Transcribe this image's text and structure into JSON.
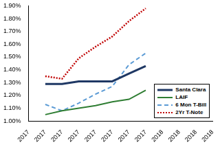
{
  "chart_data": {
    "type": "line",
    "categories": [
      "2017",
      "2017",
      "2017",
      "2017",
      "2017",
      "2017",
      "2017",
      "2017",
      "2018",
      "2018",
      "2018",
      "2018"
    ],
    "series": [
      {
        "name": "Santa Clara",
        "color": "#1f3864",
        "line_style": "solid",
        "values": [
          null,
          1.29,
          1.29,
          1.31,
          1.31,
          1.31,
          1.37,
          1.43,
          null,
          null,
          null,
          null
        ]
      },
      {
        "name": "LAIF",
        "color": "#2e7d32",
        "line_style": "solid",
        "values": [
          null,
          1.05,
          1.08,
          1.1,
          1.12,
          1.15,
          1.17,
          1.24,
          null,
          null,
          null,
          null
        ]
      },
      {
        "name": "6 Mon T-Bill",
        "color": "#5b9bd5",
        "line_style": "dashed",
        "values": [
          null,
          1.13,
          1.08,
          1.14,
          1.21,
          1.27,
          1.44,
          1.53,
          null,
          null,
          null,
          null
        ]
      },
      {
        "name": "2Yr T-Note",
        "color": "#c00000",
        "line_style": "dotted",
        "values": [
          null,
          1.35,
          1.33,
          1.49,
          1.58,
          1.66,
          1.78,
          1.88,
          null,
          null,
          null,
          null
        ]
      }
    ],
    "ylim": [
      1.0,
      1.9
    ],
    "yticks": [
      {
        "value": 1.0,
        "label": "1.00%"
      },
      {
        "value": 1.1,
        "label": "1.10%"
      },
      {
        "value": 1.2,
        "label": "1.20%"
      },
      {
        "value": 1.3,
        "label": "1.30%"
      },
      {
        "value": 1.4,
        "label": "1.40%"
      },
      {
        "value": 1.5,
        "label": "1.50%"
      },
      {
        "value": 1.6,
        "label": "1.60%"
      },
      {
        "value": 1.7,
        "label": "1.70%"
      },
      {
        "value": 1.8,
        "label": "1.80%"
      },
      {
        "value": 1.9,
        "label": "1.90%"
      }
    ],
    "grid": false,
    "legend": "lower right"
  }
}
